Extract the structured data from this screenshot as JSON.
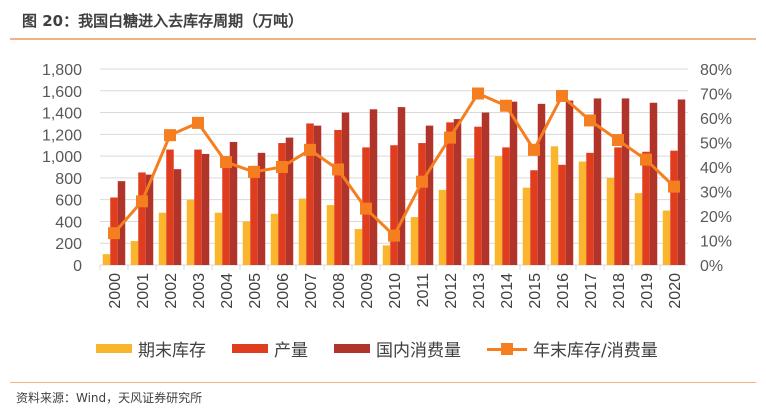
{
  "title": "图 20：我国白糖进入去库存周期（万吨）",
  "source": "资料来源：Wind，天风证券研究所",
  "chart_data": {
    "type": "bar",
    "categories": [
      "2000",
      "2001",
      "2002",
      "2003",
      "2004",
      "2005",
      "2006",
      "2007",
      "2008",
      "2009",
      "2010",
      "2011",
      "2012",
      "2013",
      "2014",
      "2015",
      "2016",
      "2017",
      "2018",
      "2019",
      "2020"
    ],
    "series": [
      {
        "name": "期末库存",
        "type": "bar",
        "axis": "left",
        "color": "#f9b62c",
        "values": [
          100,
          220,
          480,
          600,
          480,
          400,
          470,
          610,
          550,
          330,
          180,
          440,
          690,
          980,
          1000,
          710,
          1090,
          950,
          800,
          660,
          500
        ]
      },
      {
        "name": "产量",
        "type": "bar",
        "axis": "left",
        "color": "#e03c1e",
        "values": [
          620,
          850,
          1060,
          1060,
          1000,
          910,
          1120,
          1300,
          1240,
          1080,
          1100,
          1120,
          1310,
          1270,
          1080,
          870,
          920,
          1030,
          1080,
          1040,
          1050
        ]
      },
      {
        "name": "国内消费量",
        "type": "bar",
        "axis": "left",
        "color": "#b0342a",
        "values": [
          770,
          830,
          880,
          1020,
          1130,
          1030,
          1170,
          1280,
          1400,
          1430,
          1450,
          1280,
          1340,
          1400,
          1500,
          1480,
          1510,
          1530,
          1530,
          1490,
          1520
        ]
      },
      {
        "name": "年末库存/消费量",
        "type": "line",
        "axis": "right",
        "color": "#f57f20",
        "values": [
          13,
          26,
          53,
          58,
          42,
          38,
          40,
          47,
          39,
          23,
          12,
          34,
          52,
          70,
          65,
          47,
          69,
          59,
          51,
          43,
          32
        ]
      }
    ],
    "ylim": [
      0,
      1800
    ],
    "yticks": [
      "0",
      "200",
      "400",
      "600",
      "800",
      "1,000",
      "1,200",
      "1,400",
      "1,600",
      "1,800"
    ],
    "y2lim": [
      0,
      80
    ],
    "y2ticks": [
      "0%",
      "10%",
      "20%",
      "30%",
      "40%",
      "50%",
      "60%",
      "70%",
      "80%"
    ],
    "grid": true,
    "legend": "bottom"
  }
}
